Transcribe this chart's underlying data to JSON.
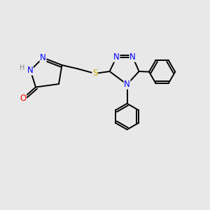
{
  "bg_color": "#e8e8e8",
  "bond_color": "#000000",
  "bond_width": 1.4,
  "atom_colors": {
    "N": "#0000ff",
    "O": "#ff0000",
    "S": "#ccaa00",
    "H": "#888888",
    "C": "#000000"
  },
  "font_size": 8.5,
  "fig_size": [
    3.0,
    3.0
  ],
  "dpi": 100,
  "xlim": [
    0,
    10
  ],
  "ylim": [
    0,
    10
  ]
}
